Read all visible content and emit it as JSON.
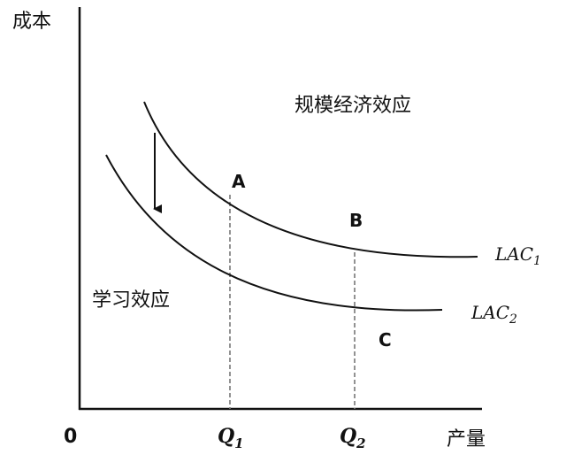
{
  "axes": {
    "y_label": "成本",
    "x_label": "产量",
    "origin": "0"
  },
  "ticks": {
    "q1": {
      "main": "Q",
      "sub": "1"
    },
    "q2": {
      "main": "Q",
      "sub": "2"
    }
  },
  "curves": {
    "lac1": {
      "main": "LAC",
      "sub": "1"
    },
    "lac2": {
      "main": "LAC",
      "sub": "2"
    }
  },
  "points": {
    "a": "A",
    "b": "B",
    "c": "C"
  },
  "annotations": {
    "economies_of_scale": "规模经济效应",
    "learning_effect": "学习效应"
  },
  "colors": {
    "axis": "#111111",
    "curve": "#111111",
    "guide": "#777777",
    "background": "#ffffff"
  }
}
